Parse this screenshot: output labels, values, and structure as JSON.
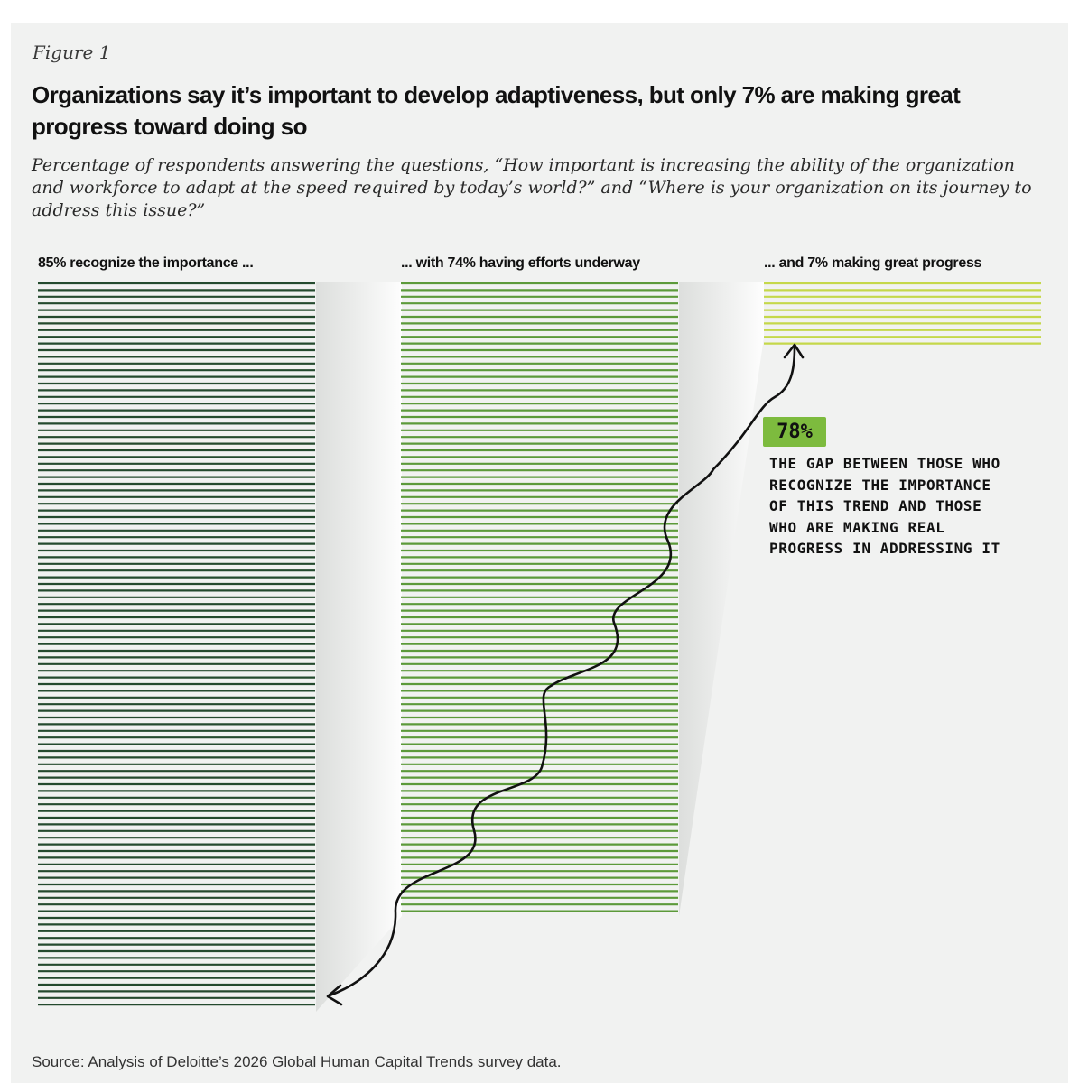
{
  "figure_label": "Figure 1",
  "chart_data": {
    "type": "bar",
    "title": "Organizations say it’s important to develop adaptiveness, but only 7% are making great progress toward doing so",
    "subtitle": "Percentage of respondents answering the questions, “How important is increasing the ability of the organization and workforce to adapt at the speed required by today’s world?” and “Where is your organization on its journey to address this issue?”",
    "categories": [
      "85% recognize the importance ...",
      "... with 74% having efforts underway",
      "... and 7% making great progress"
    ],
    "values": [
      85,
      74,
      7
    ],
    "unit": "%",
    "colors": [
      "#244a2e",
      "#5c9a3a",
      "#c5d84a"
    ],
    "annotation": {
      "value": "78%",
      "text": "THE GAP BETWEEN THOSE WHO RECOGNIZE THE IMPORTANCE OF THIS TREND AND THOSE WHO ARE MAKING REAL PROGRESS IN ADDRESSING IT",
      "highlight_color": "#7dbb3e"
    }
  },
  "source": "Source: Analysis of Deloitte’s 2026 Global Human Capital Trends survey data."
}
